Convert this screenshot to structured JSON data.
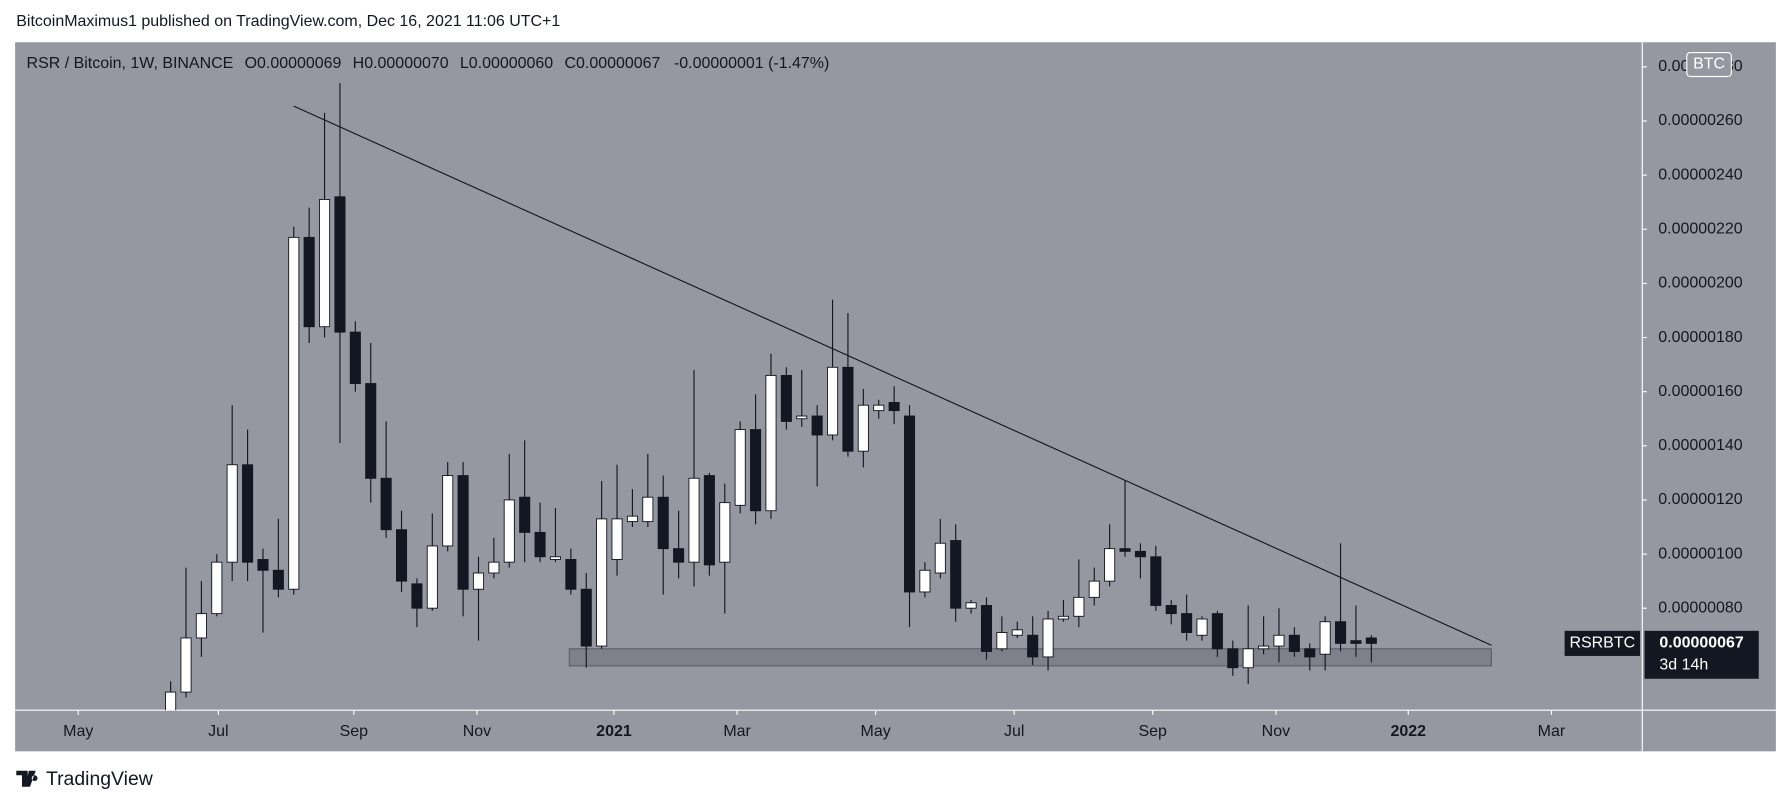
{
  "header": {
    "author_line": "BitcoinMaximus1 published on TradingView.com, Dec 16, 2021 11:06 UTC+1"
  },
  "chart_data": {
    "type": "candlestick",
    "title": "RSR / Bitcoin, 1W, BINANCE",
    "legend": {
      "open_key": "O",
      "open": "0.00000069",
      "high_key": "H",
      "high": "0.00000070",
      "low_key": "L",
      "low": "0.00000060",
      "close_key": "C",
      "close": "0.00000067",
      "change": "-0.00000001 (-1.47%)"
    },
    "currency": "BTC",
    "up_color": "#ffffff",
    "down_color": "#131722",
    "open": [
      4e-07,
      4.9e-07,
      6.9e-07,
      7.8e-07,
      9.7e-07,
      1.33e-06,
      9.8e-07,
      9.4e-07,
      8.7e-07,
      2.17e-06,
      1.84e-06,
      2.32e-06,
      1.82e-06,
      1.63e-06,
      1.28e-06,
      1.09e-06,
      8.9e-07,
      8e-07,
      1.03e-06,
      1.29e-06,
      8.7e-07,
      9.3e-07,
      9.7e-07,
      1.21e-06,
      1.08e-06,
      9.8e-07,
      9.8e-07,
      8.7e-07,
      6.6e-07,
      9.8e-07,
      1.12e-06,
      1.12e-06,
      1.21e-06,
      1.02e-06,
      9.7e-07,
      1.29e-06,
      9.7e-07,
      1.18e-06,
      1.46e-06,
      1.16e-06,
      1.66e-06,
      1.5e-06,
      1.51e-06,
      1.44e-06,
      1.69e-06,
      1.38e-06,
      1.53e-06,
      1.56e-06,
      1.51e-06,
      8.6e-07,
      9.3e-07,
      1.05e-06,
      8e-07,
      8.1e-07,
      6.5e-07,
      7e-07,
      7e-07,
      6.2e-07,
      7.6e-07,
      7.7e-07,
      8.4e-07,
      9e-07,
      1.02e-06,
      1.01e-06,
      9.9e-07,
      8.1e-07,
      7.8e-07,
      7e-07,
      7.8e-07,
      6.5e-07,
      5.8e-07,
      6.5e-07,
      6.6e-07,
      7e-07,
      6.5e-07,
      6.3e-07,
      7.5e-07,
      6.8e-07,
      6.9e-07
    ],
    "high": [
      5.3e-07,
      9.5e-07,
      9e-07,
      1e-06,
      1.55e-06,
      1.46e-06,
      1.02e-06,
      1.13e-06,
      2.21e-06,
      2.28e-06,
      2.63e-06,
      2.74e-06,
      1.86e-06,
      1.78e-06,
      1.49e-06,
      1.16e-06,
      9.1e-07,
      1.15e-06,
      1.34e-06,
      1.34e-06,
      9.9e-07,
      1.06e-06,
      1.37e-06,
      1.42e-06,
      1.19e-06,
      1.17e-06,
      1.02e-06,
      9.3e-07,
      1.27e-06,
      1.33e-06,
      1.24e-06,
      1.37e-06,
      1.29e-06,
      1.16e-06,
      1.68e-06,
      1.3e-06,
      1.26e-06,
      1.49e-06,
      1.59e-06,
      1.74e-06,
      1.69e-06,
      1.68e-06,
      1.55e-06,
      1.94e-06,
      1.89e-06,
      1.61e-06,
      1.57e-06,
      1.62e-06,
      1.55e-06,
      9.7e-07,
      1.13e-06,
      1.11e-06,
      8.3e-07,
      8.4e-07,
      7.7e-07,
      7.5e-07,
      7.7e-07,
      7.9e-07,
      8.3e-07,
      9.8e-07,
      9.5e-07,
      1.11e-06,
      1.27e-06,
      1.04e-06,
      1.03e-06,
      8.3e-07,
      8.5e-07,
      7.7e-07,
      7.9e-07,
      6.8e-07,
      8.1e-07,
      7.7e-07,
      8e-07,
      7.3e-07,
      6.7e-07,
      7.7e-07,
      1.04e-06,
      8.1e-07,
      7e-07
    ],
    "low": [
      3.8e-07,
      4.7e-07,
      6.2e-07,
      7.7e-07,
      9e-07,
      9e-07,
      7.1e-07,
      8.4e-07,
      8.5e-07,
      1.78e-06,
      1.8e-06,
      1.41e-06,
      1.6e-06,
      1.19e-06,
      1.06e-06,
      8.6e-07,
      7.3e-07,
      7.9e-07,
      1.01e-06,
      7.7e-07,
      6.8e-07,
      9.1e-07,
      9.5e-07,
      9.7e-07,
      9.7e-07,
      9.7e-07,
      8.5e-07,
      5.8e-07,
      6.5e-07,
      9.2e-07,
      1.1e-06,
      1.1e-06,
      8.5e-07,
      9.1e-07,
      8.8e-07,
      9.2e-07,
      7.8e-07,
      1.15e-06,
      1.11e-06,
      1.13e-06,
      1.46e-06,
      1.47e-06,
      1.25e-06,
      1.42e-06,
      1.36e-06,
      1.32e-06,
      1.5e-06,
      1.48e-06,
      7.3e-07,
      8.4e-07,
      9.1e-07,
      7.5e-07,
      7.8e-07,
      6.1e-07,
      6.4e-07,
      6.9e-07,
      5.9e-07,
      5.7e-07,
      7.5e-07,
      7.3e-07,
      8.1e-07,
      8.8e-07,
      9.9e-07,
      9.1e-07,
      7.9e-07,
      7.4e-07,
      6.8e-07,
      6.8e-07,
      6.2e-07,
      5.5e-07,
      5.2e-07,
      6.3e-07,
      6e-07,
      6.2e-07,
      5.7e-07,
      5.7e-07,
      6.4e-07,
      6.2e-07,
      6e-07
    ],
    "close": [
      4.9e-07,
      6.9e-07,
      7.8e-07,
      9.7e-07,
      1.33e-06,
      9.7e-07,
      9.4e-07,
      8.7e-07,
      2.17e-06,
      1.84e-06,
      2.31e-06,
      1.82e-06,
      1.63e-06,
      1.28e-06,
      1.09e-06,
      9e-07,
      8e-07,
      1.03e-06,
      1.29e-06,
      8.7e-07,
      9.3e-07,
      9.7e-07,
      1.2e-06,
      1.08e-06,
      9.9e-07,
      9.9e-07,
      8.7e-07,
      6.6e-07,
      1.13e-06,
      1.13e-06,
      1.14e-06,
      1.21e-06,
      1.02e-06,
      9.7e-07,
      1.28e-06,
      9.6e-07,
      1.19e-06,
      1.46e-06,
      1.16e-06,
      1.66e-06,
      1.49e-06,
      1.51e-06,
      1.44e-06,
      1.69e-06,
      1.38e-06,
      1.55e-06,
      1.55e-06,
      1.53e-06,
      8.6e-07,
      9.4e-07,
      1.04e-06,
      8e-07,
      8.2e-07,
      6.4e-07,
      7.1e-07,
      7.2e-07,
      6.2e-07,
      7.6e-07,
      7.7e-07,
      8.4e-07,
      9e-07,
      1.02e-06,
      1.01e-06,
      9.9e-07,
      8.1e-07,
      7.8e-07,
      7.1e-07,
      7.6e-07,
      6.5e-07,
      5.8e-07,
      6.5e-07,
      6.6e-07,
      7e-07,
      6.4e-07,
      6.2e-07,
      7.5e-07,
      6.7e-07,
      6.7e-07,
      6.7e-07
    ],
    "xlim": [
      -10.1,
      95.6
    ],
    "xticks": [
      {
        "value": -6,
        "label": "May"
      },
      {
        "value": 3.1,
        "label": "Jul"
      },
      {
        "value": 11.9,
        "label": "Sep"
      },
      {
        "value": 19.9,
        "label": "Nov"
      },
      {
        "value": 28.8,
        "label": "2021"
      },
      {
        "value": 36.8,
        "label": "Mar"
      },
      {
        "value": 45.8,
        "label": "May"
      },
      {
        "value": 54.8,
        "label": "Jul"
      },
      {
        "value": 63.8,
        "label": "Sep"
      },
      {
        "value": 71.8,
        "label": "Nov"
      },
      {
        "value": 80.4,
        "label": "2022"
      },
      {
        "value": 89.7,
        "label": "Mar"
      }
    ],
    "ylim": [
      4.23e-07,
      2.891e-06
    ],
    "yticks": [
      {
        "value": 8e-07,
        "label": "0.00000080"
      },
      {
        "value": 1e-06,
        "label": "0.00000100"
      },
      {
        "value": 1.2e-06,
        "label": "0.00000120"
      },
      {
        "value": 1.4e-06,
        "label": "0.00000140"
      },
      {
        "value": 1.6e-06,
        "label": "0.00000160"
      },
      {
        "value": 1.8e-06,
        "label": "0.00000180"
      },
      {
        "value": 2e-06,
        "label": "0.00000200"
      },
      {
        "value": 2.2e-06,
        "label": "0.00000220"
      },
      {
        "value": 2.4e-06,
        "label": "0.00000240"
      },
      {
        "value": 2.6e-06,
        "label": "0.00000260"
      },
      {
        "value": 2.8e-06,
        "label": "0.00000280"
      }
    ],
    "grid": false,
    "trendline": {
      "x": [
        8,
        85.8
      ],
      "y": [
        2.655e-06,
        6.63e-07
      ]
    },
    "support_zone": {
      "x": [
        25.9,
        85.8
      ],
      "y": [
        6.5e-07,
        5.87e-07
      ]
    },
    "last_price": {
      "symbol": "RSRBTC",
      "value": 6.7e-07,
      "label": "0.00000067",
      "countdown": "3d 14h"
    }
  },
  "footer": {
    "brand": "TradingView"
  }
}
